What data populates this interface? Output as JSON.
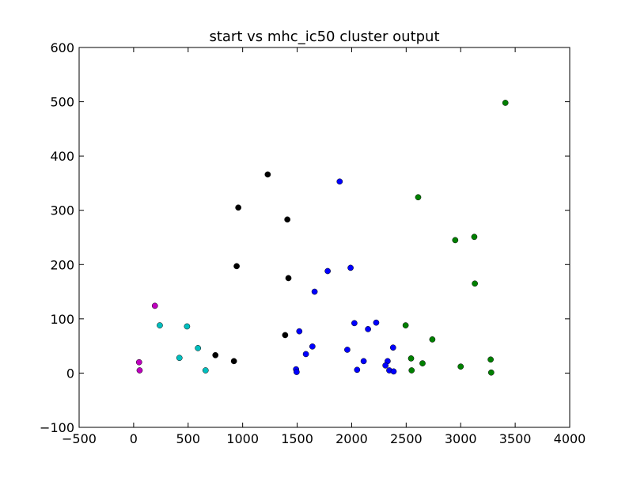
{
  "chart_data": {
    "type": "scatter",
    "title": "start vs mhc_ic50 cluster output",
    "xlabel": "",
    "ylabel": "",
    "xlim": [
      -500,
      4000
    ],
    "ylim": [
      -100,
      600
    ],
    "xticks": [
      -500,
      0,
      500,
      1000,
      1500,
      2000,
      2500,
      3000,
      3500,
      4000
    ],
    "yticks": [
      -100,
      0,
      100,
      200,
      300,
      400,
      500,
      600
    ],
    "xtick_labels": [
      "−500",
      "0",
      "500",
      "1000",
      "1500",
      "2000",
      "2500",
      "3000",
      "3500",
      "4000"
    ],
    "ytick_labels": [
      "−100",
      "0",
      "100",
      "200",
      "300",
      "400",
      "500",
      "600"
    ],
    "grid": false,
    "legend": "none",
    "series": [
      {
        "color": "#bf00bf",
        "points": [
          [
            195,
            124
          ],
          [
            50,
            20
          ],
          [
            55,
            5
          ]
        ]
      },
      {
        "color": "#00bfbf",
        "points": [
          [
            240,
            88
          ],
          [
            490,
            86
          ],
          [
            590,
            46
          ],
          [
            420,
            28
          ],
          [
            660,
            5
          ]
        ]
      },
      {
        "color": "#000000",
        "points": [
          [
            1230,
            366
          ],
          [
            960,
            305
          ],
          [
            1410,
            283
          ],
          [
            945,
            197
          ],
          [
            1420,
            175
          ],
          [
            1390,
            70
          ],
          [
            750,
            33
          ],
          [
            920,
            22
          ]
        ]
      },
      {
        "color": "#0000ff",
        "points": [
          [
            1890,
            353
          ],
          [
            1990,
            194
          ],
          [
            1780,
            188
          ],
          [
            1660,
            150
          ],
          [
            2225,
            93
          ],
          [
            2025,
            92
          ],
          [
            2150,
            81
          ],
          [
            1520,
            77
          ],
          [
            2380,
            47
          ],
          [
            1640,
            49
          ],
          [
            1960,
            43
          ],
          [
            1580,
            35
          ],
          [
            2110,
            22
          ],
          [
            2330,
            22
          ],
          [
            2310,
            14
          ],
          [
            1490,
            7
          ],
          [
            2050,
            6
          ],
          [
            2345,
            5
          ],
          [
            1495,
            2
          ],
          [
            2385,
            3
          ]
        ]
      },
      {
        "color": "#008000",
        "points": [
          [
            3410,
            498
          ],
          [
            2610,
            324
          ],
          [
            2950,
            245
          ],
          [
            3125,
            251
          ],
          [
            3130,
            165
          ],
          [
            2495,
            88
          ],
          [
            2740,
            62
          ],
          [
            2545,
            27
          ],
          [
            2650,
            18
          ],
          [
            3000,
            12
          ],
          [
            3275,
            25
          ],
          [
            2550,
            5
          ],
          [
            3280,
            1
          ]
        ]
      }
    ]
  }
}
